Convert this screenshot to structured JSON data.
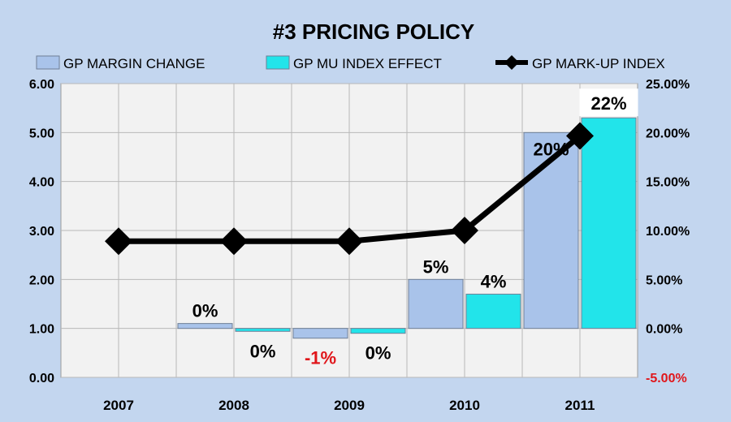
{
  "chart_data": {
    "type": "bar",
    "title": "#3  PRICING POLICY",
    "categories": [
      "2007",
      "2008",
      "2009",
      "2010",
      "2011"
    ],
    "series": [
      {
        "name": "GP MARGIN CHANGE",
        "kind": "bar",
        "axis": "right",
        "color": "#a9c3ea",
        "values": [
          null,
          0.5,
          -1,
          5,
          20
        ],
        "labels": [
          "",
          "0%",
          "-1%",
          "5%",
          "20%"
        ]
      },
      {
        "name": "GP MU INDEX EFFECT",
        "kind": "bar",
        "axis": "right",
        "color": "#22e4ea",
        "values": [
          null,
          -0.3,
          -0.5,
          3.5,
          21.5
        ],
        "labels": [
          "",
          "0%",
          "0%",
          "4%",
          "22%"
        ]
      },
      {
        "name": "GP MARK-UP INDEX",
        "kind": "line",
        "axis": "left",
        "color": "#000000",
        "values": [
          2.78,
          2.78,
          2.78,
          3.0,
          4.93
        ]
      }
    ],
    "y_left": {
      "ylim": [
        0,
        6
      ],
      "ticks": [
        "0.00",
        "1.00",
        "2.00",
        "3.00",
        "4.00",
        "5.00",
        "6.00"
      ]
    },
    "y_right": {
      "ylim": [
        -5,
        25
      ],
      "ticks": [
        "-5.00%",
        "0.00%",
        "5.00%",
        "10.00%",
        "15.00%",
        "20.00%",
        "25.00%"
      ]
    },
    "grid": true,
    "legend": "top"
  }
}
